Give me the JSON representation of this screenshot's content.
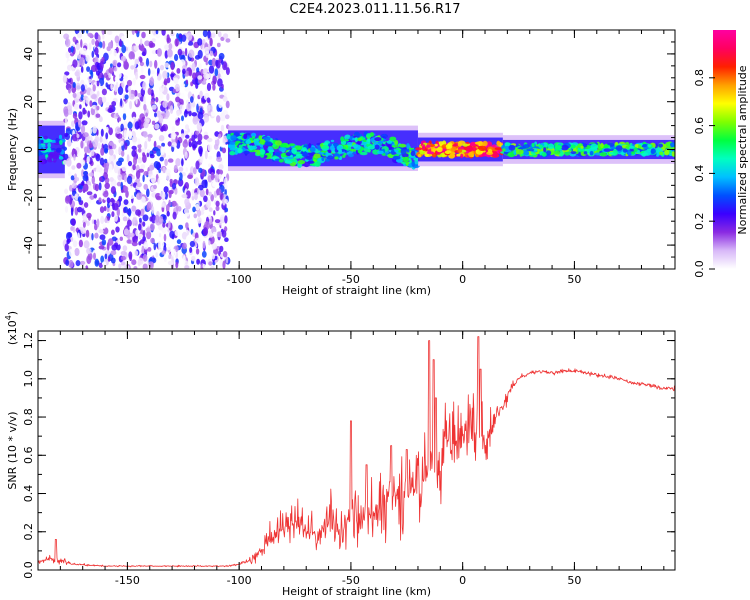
{
  "figure": {
    "title": "C2E4.2023.011.11.56.R17"
  },
  "chart_data": [
    {
      "type": "heatmap",
      "xlabel": "Height of straight line (km)",
      "ylabel": "Frequency (Hz)",
      "xlim": [
        -190,
        95
      ],
      "ylim": [
        -50,
        50
      ],
      "xticks": [
        -150,
        -100,
        -50,
        0,
        50
      ],
      "yticks": [
        -40,
        -20,
        0,
        20,
        40
      ],
      "grid": false,
      "colorbar": {
        "label": "Normalized spectral amplitude",
        "range": [
          0,
          1
        ],
        "ticks": [
          0.0,
          0.2,
          0.4,
          0.6,
          0.8
        ],
        "colors": [
          "#ffffff",
          "#d8b8f8",
          "#8a2be2",
          "#3a00ff",
          "#0050ff",
          "#00c0ff",
          "#00ffc0",
          "#00ff40",
          "#80ff00",
          "#ffff00",
          "#ffa000",
          "#ff2000",
          "#ff0060",
          "#ff00a0"
        ]
      },
      "regions": [
        {
          "x": [
            -190,
            -178
          ],
          "freq_band": [
            -10,
            10
          ],
          "level": 0.3
        },
        {
          "x": [
            -178,
            -105
          ],
          "freq_band": [
            -50,
            50
          ],
          "level": 0.15
        },
        {
          "x": [
            -105,
            -20
          ],
          "freq_band": [
            -7,
            8
          ],
          "level": 0.4
        },
        {
          "x": [
            -20,
            18
          ],
          "freq_band": [
            -5,
            5
          ],
          "level": 0.85
        },
        {
          "x": [
            18,
            95
          ],
          "freq_band": [
            -4,
            4
          ],
          "level": 0.45
        }
      ]
    },
    {
      "type": "line",
      "xlabel": "Height of straight line (km)",
      "ylabel": "SNR (10 * v/v)",
      "yscale_label": "(x10",
      "yscale_exp": "4",
      "yscale_close": ")",
      "xlim": [
        -190,
        95
      ],
      "ylim": [
        0,
        1.25
      ],
      "xticks": [
        -150,
        -100,
        -50,
        0,
        50
      ],
      "yticks": [
        0.0,
        0.2,
        0.4,
        0.6,
        0.8,
        1.0,
        1.2
      ],
      "grid": false,
      "color": "#ee3333",
      "profile_x": [
        -190,
        -185,
        -180,
        -175,
        -160,
        -140,
        -120,
        -105,
        -100,
        -95,
        -90,
        -85,
        -80,
        -75,
        -70,
        -65,
        -60,
        -55,
        -50,
        -45,
        -40,
        -35,
        -30,
        -25,
        -20,
        -15,
        -12,
        -10,
        -8,
        -5,
        -3,
        0,
        3,
        5,
        8,
        10,
        13,
        15,
        18,
        20,
        22,
        25,
        30,
        35,
        40,
        45,
        50,
        55,
        60,
        65,
        70,
        75,
        80,
        85,
        90,
        95
      ],
      "profile_y": [
        0.04,
        0.06,
        0.05,
        0.03,
        0.02,
        0.02,
        0.02,
        0.02,
        0.03,
        0.05,
        0.1,
        0.18,
        0.22,
        0.25,
        0.2,
        0.18,
        0.25,
        0.22,
        0.28,
        0.25,
        0.3,
        0.35,
        0.4,
        0.38,
        0.45,
        0.5,
        0.6,
        0.5,
        0.7,
        0.62,
        0.65,
        0.7,
        0.68,
        0.72,
        0.7,
        0.65,
        0.72,
        0.8,
        0.85,
        0.9,
        0.95,
        1.0,
        1.03,
        1.04,
        1.03,
        1.04,
        1.04,
        1.03,
        1.02,
        1.01,
        1.0,
        0.98,
        0.97,
        0.96,
        0.95,
        0.95
      ],
      "noise_amp": [
        0.015,
        0.03,
        0.04,
        0.01,
        0.005,
        0.005,
        0.005,
        0.005,
        0.01,
        0.03,
        0.08,
        0.12,
        0.15,
        0.15,
        0.12,
        0.12,
        0.18,
        0.18,
        0.22,
        0.2,
        0.22,
        0.25,
        0.28,
        0.26,
        0.3,
        0.32,
        0.3,
        0.3,
        0.28,
        0.2,
        0.25,
        0.22,
        0.25,
        0.28,
        0.25,
        0.2,
        0.15,
        0.12,
        0.08,
        0.06,
        0.04,
        0.02,
        0.015,
        0.015,
        0.015,
        0.015,
        0.015,
        0.015,
        0.015,
        0.015,
        0.015,
        0.015,
        0.015,
        0.015,
        0.015,
        0.015
      ],
      "peaks": [
        [
          -182,
          0.16
        ],
        [
          -50,
          0.78
        ],
        [
          -43,
          0.55
        ],
        [
          -32,
          0.65
        ],
        [
          -25,
          0.63
        ],
        [
          -15,
          1.2
        ],
        [
          -13,
          1.1
        ],
        [
          -12,
          0.9
        ],
        [
          7,
          1.22
        ],
        [
          8,
          1.05
        ],
        [
          17,
          0.85
        ]
      ]
    }
  ]
}
